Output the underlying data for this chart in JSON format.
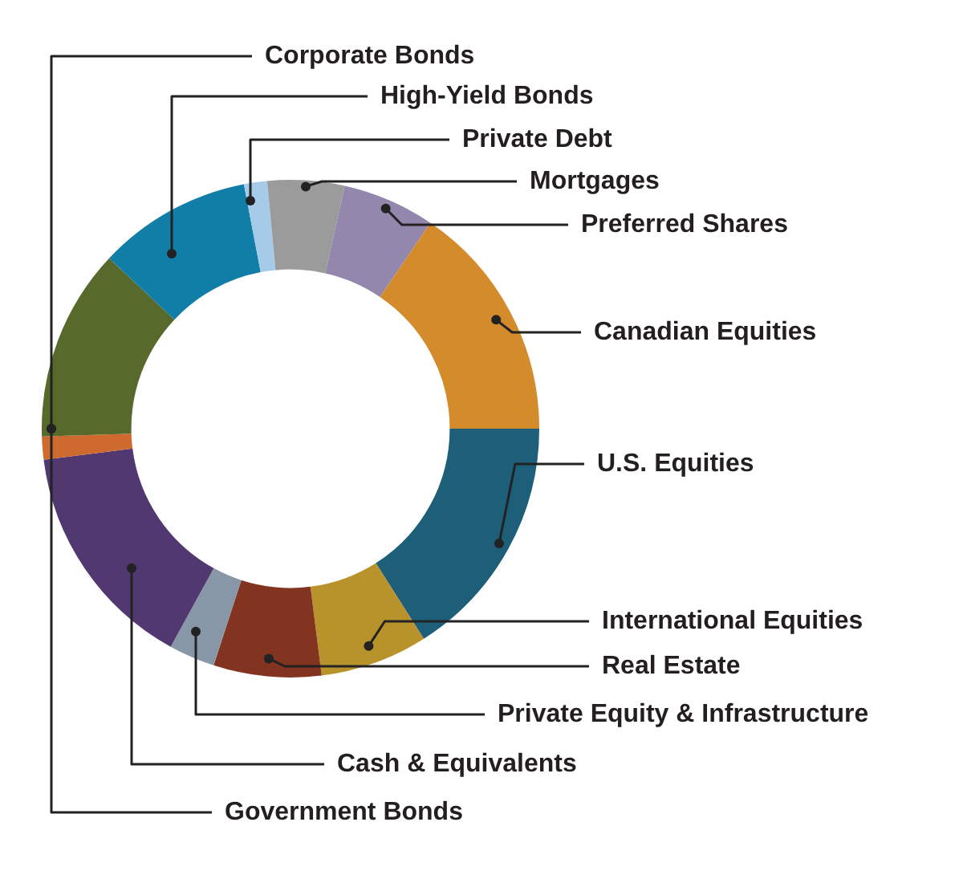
{
  "chart_data": {
    "type": "donut",
    "categories": [
      "U.S. Equities",
      "International Equities",
      "Real Estate",
      "Private Equity & Infrastructure",
      "Cash & Equivalents",
      "Government Bonds",
      "Corporate Bonds",
      "High-Yield Bonds",
      "Private Debt",
      "Mortgages",
      "Preferred Shares",
      "Canadian Equities"
    ],
    "values": [
      16,
      7,
      7,
      3,
      15,
      1.5,
      12.5,
      10,
      1.5,
      5,
      6,
      15.5
    ],
    "colors": [
      "#1d5f78",
      "#b8922a",
      "#833421",
      "#8797a8",
      "#523870",
      "#cf6a2e",
      "#58692c",
      "#117ea8",
      "#a6cbe8",
      "#9b9b9b",
      "#9487ad",
      "#d38b2c"
    ]
  }
}
